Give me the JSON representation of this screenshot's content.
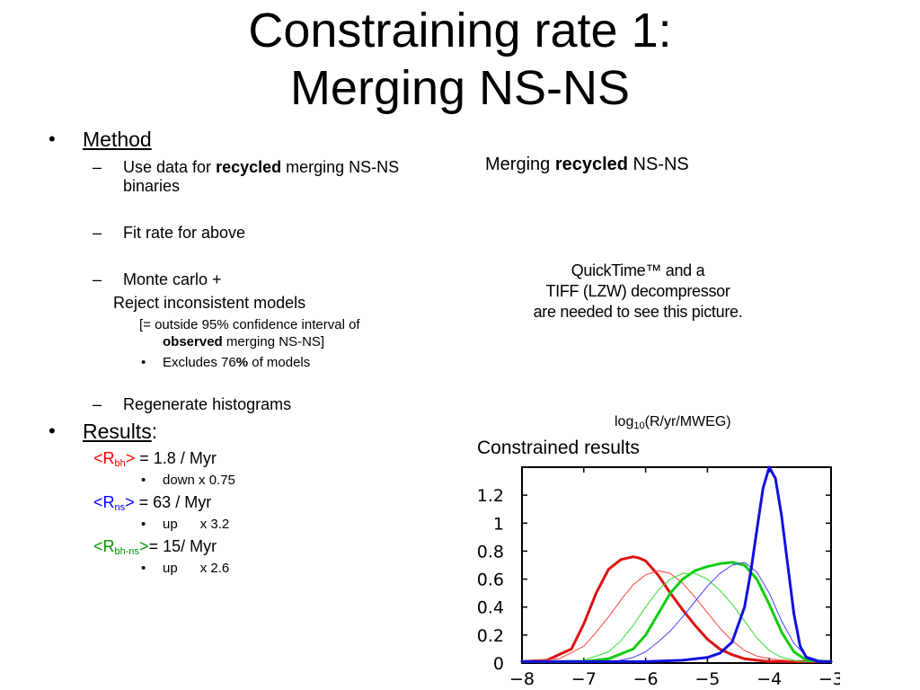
{
  "slide": {
    "title_line1": "Constraining rate 1:",
    "title_line2": "Merging NS-NS"
  },
  "method": {
    "bullet": "•",
    "heading": "Method",
    "dash": "–",
    "item1_pre": "Use data for ",
    "item1_bold": "recycled",
    "item1_post": " merging NS-NS",
    "item1_line2": "binaries",
    "item2": "Fit rate for above",
    "item3": "Monte carlo +",
    "item3_sub": "Reject inconsistent models",
    "note1_pre": "[= outside 95% confidence interval of",
    "note1_bold": "observed",
    "note1_post": " merging NS-NS]",
    "note2_bullet": "•",
    "note2_pre": "Excludes 76",
    "note2_bold": "%",
    "note2_post": " of models",
    "item4": "Regenerate histograms"
  },
  "results": {
    "bullet": "•",
    "heading": "Results",
    "colon": ":",
    "sub_bullet": "•",
    "r_bh": {
      "open": "<R",
      "sub": "bh",
      "close": ">",
      "value": " = 1.8 / Myr",
      "change": "down x 0.75"
    },
    "r_ns": {
      "open": "<R",
      "sub": "ns",
      "close": ">",
      "value": " = 63 / Myr",
      "change": "up      x 3.2"
    },
    "r_bhns": {
      "open": "<R",
      "sub": "bh-ns",
      "close": ">",
      "value": "= 15/ Myr",
      "change": "up      x 2.6"
    }
  },
  "right": {
    "heading_pre": "Merging ",
    "heading_bold": "recycled",
    "heading_post": " NS-NS",
    "placeholder_line1": "QuickTime™ and a",
    "placeholder_line2": "TIFF (LZW) decompressor",
    "placeholder_line3": "are needed to see this picture.",
    "axis_pre": "log",
    "axis_sub": "10",
    "axis_post": "(R/yr/MWEG)",
    "constrained_label": "Constrained results"
  },
  "chart_data": {
    "type": "line",
    "xlim": [
      -8,
      -3
    ],
    "ylim": [
      0,
      1.4
    ],
    "x_ticks": [
      -8,
      -7,
      -6,
      -5,
      -4,
      -3
    ],
    "x_tick_labels": [
      "−8",
      "−7",
      "−6",
      "−5",
      "−4",
      "−3"
    ],
    "y_ticks": [
      0,
      0.2,
      0.4,
      0.6,
      0.8,
      1,
      1.2
    ],
    "y_tick_labels": [
      "0",
      "0.2",
      "0.4",
      "0.6",
      "0.8",
      "1",
      "1.2"
    ],
    "grid": false,
    "series": [
      {
        "color": "#dd1111",
        "width": 3,
        "x": [
          -8,
          -7.6,
          -7.2,
          -7,
          -6.8,
          -6.6,
          -6.4,
          -6.2,
          -6.1,
          -6,
          -5.8,
          -5.6,
          -5.4,
          -5.2,
          -5,
          -4.8,
          -4.6,
          -4.4,
          -4.2,
          -4,
          -3.5,
          -3
        ],
        "y": [
          0.01,
          0.02,
          0.1,
          0.28,
          0.5,
          0.67,
          0.74,
          0.76,
          0.75,
          0.73,
          0.63,
          0.5,
          0.38,
          0.27,
          0.17,
          0.1,
          0.06,
          0.03,
          0.02,
          0.01,
          0.01,
          0.01
        ]
      },
      {
        "color": "#ff4444",
        "width": 1,
        "x": [
          -8,
          -7.4,
          -7,
          -6.8,
          -6.6,
          -6.4,
          -6.2,
          -6,
          -5.8,
          -5.6,
          -5.4,
          -5.2,
          -5,
          -4.8,
          -4.6,
          -4.4,
          -4.2,
          -4,
          -3.5,
          -3
        ],
        "y": [
          0.01,
          0.03,
          0.12,
          0.22,
          0.33,
          0.45,
          0.56,
          0.63,
          0.66,
          0.64,
          0.57,
          0.47,
          0.36,
          0.25,
          0.16,
          0.09,
          0.05,
          0.03,
          0.01,
          0.01
        ]
      },
      {
        "color": "#11cc11",
        "width": 3,
        "x": [
          -8,
          -7,
          -6.6,
          -6.2,
          -6,
          -5.8,
          -5.6,
          -5.4,
          -5.2,
          -5,
          -4.8,
          -4.6,
          -4.4,
          -4.2,
          -4,
          -3.8,
          -3.6,
          -3.4,
          -3
        ],
        "y": [
          0.01,
          0.01,
          0.03,
          0.1,
          0.2,
          0.35,
          0.5,
          0.6,
          0.66,
          0.69,
          0.71,
          0.72,
          0.7,
          0.6,
          0.42,
          0.22,
          0.08,
          0.02,
          0.01
        ]
      },
      {
        "color": "#33dd33",
        "width": 1,
        "x": [
          -8,
          -7,
          -6.6,
          -6.4,
          -6.2,
          -6,
          -5.8,
          -5.6,
          -5.4,
          -5.2,
          -5,
          -4.8,
          -4.6,
          -4.4,
          -4.2,
          -4,
          -3.8,
          -3.5,
          -3
        ],
        "y": [
          0.01,
          0.02,
          0.08,
          0.16,
          0.27,
          0.4,
          0.52,
          0.6,
          0.64,
          0.64,
          0.6,
          0.52,
          0.42,
          0.3,
          0.18,
          0.09,
          0.04,
          0.01,
          0.01
        ]
      },
      {
        "color": "#4444ff",
        "width": 1,
        "x": [
          -8,
          -6.5,
          -6.2,
          -6,
          -5.8,
          -5.6,
          -5.4,
          -5.2,
          -5,
          -4.8,
          -4.6,
          -4.4,
          -4.2,
          -4,
          -3.8,
          -3.6,
          -3.4,
          -3.2,
          -3
        ],
        "y": [
          0.01,
          0.01,
          0.04,
          0.08,
          0.15,
          0.23,
          0.33,
          0.44,
          0.55,
          0.64,
          0.7,
          0.72,
          0.65,
          0.5,
          0.3,
          0.14,
          0.05,
          0.02,
          0.01
        ]
      },
      {
        "color": "#1111dd",
        "width": 3,
        "x": [
          -8,
          -6,
          -5.4,
          -5,
          -4.8,
          -4.6,
          -4.4,
          -4.3,
          -4.2,
          -4.1,
          -4,
          -3.9,
          -3.8,
          -3.7,
          -3.6,
          -3.5,
          -3.4,
          -3.2,
          -3
        ],
        "y": [
          0.01,
          0.01,
          0.02,
          0.04,
          0.07,
          0.15,
          0.4,
          0.65,
          0.95,
          1.25,
          1.4,
          1.32,
          1.05,
          0.7,
          0.35,
          0.12,
          0.04,
          0.01,
          0.01
        ]
      }
    ]
  }
}
